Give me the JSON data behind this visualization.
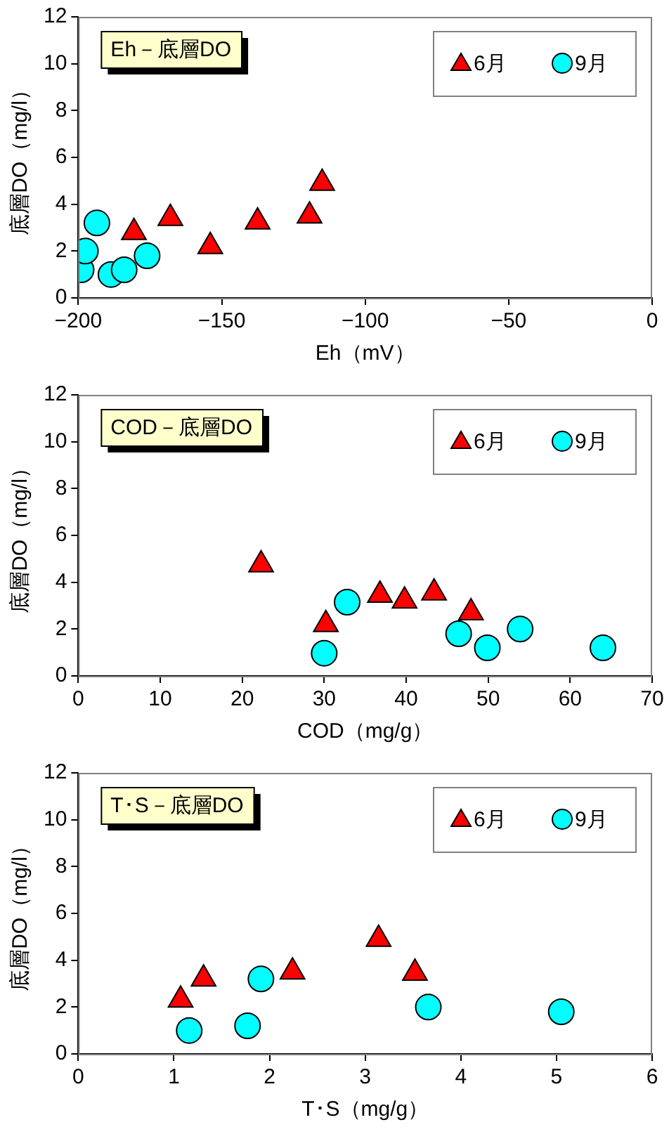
{
  "chart_data": [
    {
      "type": "scatter",
      "title": "Eh－底層DO",
      "xlabel": "Eh（mV）",
      "ylabel": "底層DO（mg/l）",
      "xlim": [
        -200,
        0
      ],
      "xticks": [
        {
          "value": -200,
          "label": "−200"
        },
        {
          "value": -150,
          "label": "−150"
        },
        {
          "value": -100,
          "label": "−100"
        },
        {
          "value": -50,
          "label": "−50"
        },
        0
      ],
      "ylim": [
        0,
        12
      ],
      "yticks": [
        0,
        2,
        4,
        6,
        8,
        10,
        12
      ],
      "grid": false,
      "legend": "top right",
      "series": [
        {
          "name": "6月",
          "color": "#ff0000",
          "marker": "triangle",
          "x": [
            -180.6,
            -167.9,
            -154,
            -137.5,
            -119.4,
            -115
          ],
          "values": [
            2.8,
            3.4,
            2.2,
            3.25,
            3.5,
            4.9
          ]
        },
        {
          "name": "9月",
          "color": "#00ffff",
          "marker": "circle",
          "x": [
            -199,
            -197.5,
            -193.5,
            -188.6,
            -184,
            -176
          ],
          "values": [
            1.2,
            2.0,
            3.2,
            1.0,
            1.2,
            1.8
          ]
        }
      ]
    },
    {
      "type": "scatter",
      "title": "COD－底層DO",
      "xlabel": "COD（mg/g）",
      "ylabel": "底層DO（mg/l）",
      "xlim": [
        0,
        70
      ],
      "xticks": [
        0,
        10,
        20,
        30,
        40,
        50,
        60,
        70
      ],
      "ylim": [
        0,
        12
      ],
      "yticks": [
        0,
        2,
        4,
        6,
        8,
        10,
        12
      ],
      "grid": false,
      "legend": "top right",
      "series": [
        {
          "name": "6月",
          "color": "#ff0000",
          "marker": "triangle",
          "x": [
            22.3,
            30.2,
            36.8,
            39.8,
            43.4,
            47.9
          ],
          "values": [
            4.75,
            2.2,
            3.45,
            3.2,
            3.55,
            2.7
          ]
        },
        {
          "name": "9月",
          "color": "#00ffff",
          "marker": "circle",
          "x": [
            30,
            32.8,
            46.4,
            49.9,
            53.9,
            64
          ],
          "values": [
            0.97,
            3.15,
            1.8,
            1.2,
            2.0,
            1.2
          ]
        }
      ]
    },
    {
      "type": "scatter",
      "title": "T･S－底層DO",
      "xlabel": "T･S（mg/g）",
      "ylabel": "底層DO（mg/l）",
      "xlim": [
        0,
        6
      ],
      "xticks": [
        0,
        1,
        2,
        3,
        4,
        5,
        6
      ],
      "ylim": [
        0,
        12
      ],
      "yticks": [
        0,
        2,
        4,
        6,
        8,
        10,
        12
      ],
      "grid": false,
      "legend": "top right",
      "series": [
        {
          "name": "6月",
          "color": "#ff0000",
          "marker": "triangle",
          "x": [
            1.07,
            1.31,
            2.24,
            3.14,
            3.52
          ],
          "values": [
            2.3,
            3.2,
            3.5,
            4.9,
            3.45
          ]
        },
        {
          "name": "9月",
          "color": "#00ffff",
          "marker": "circle",
          "x": [
            1.16,
            1.77,
            1.91,
            3.66,
            5.05
          ],
          "values": [
            1.0,
            1.2,
            3.2,
            2.0,
            1.8
          ]
        }
      ]
    }
  ]
}
